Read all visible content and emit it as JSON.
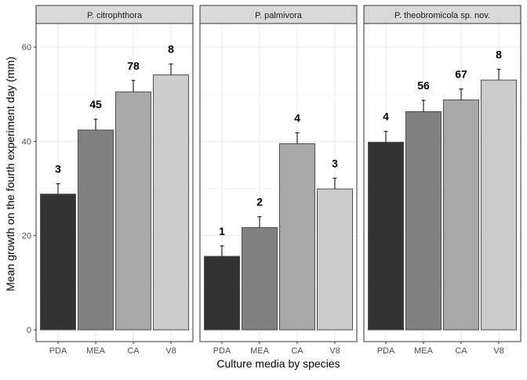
{
  "chart_data": {
    "type": "bar",
    "ylabel": "Mean growth on the fourth experiment day (mm)",
    "xlabel": "Culture media by species",
    "ylim": [
      -2.5,
      65
    ],
    "yticks": [
      0,
      20,
      40,
      60
    ],
    "grid": true,
    "categories": [
      "PDA",
      "MEA",
      "CA",
      "V8"
    ],
    "fill_colors": [
      "#333333",
      "#808080",
      "#a8a8a8",
      "#cccccc"
    ],
    "panels": [
      {
        "title": "P. citrophthora",
        "values": [
          28.8,
          42.4,
          50.5,
          54.1
        ],
        "errors": [
          2.2,
          2.3,
          2.4,
          2.3
        ],
        "labels": [
          "3",
          "45",
          "78",
          "8"
        ]
      },
      {
        "title": "P. palmivora",
        "values": [
          15.6,
          21.7,
          39.5,
          29.9
        ],
        "errors": [
          2.2,
          2.3,
          2.3,
          2.3
        ],
        "labels": [
          "1",
          "2",
          "4",
          "3"
        ]
      },
      {
        "title": "P. theobromicola sp. nov.",
        "values": [
          39.8,
          46.3,
          48.8,
          53.0
        ],
        "errors": [
          2.3,
          2.4,
          2.3,
          2.3
        ],
        "labels": [
          "4",
          "56",
          "67",
          "8"
        ]
      }
    ]
  }
}
